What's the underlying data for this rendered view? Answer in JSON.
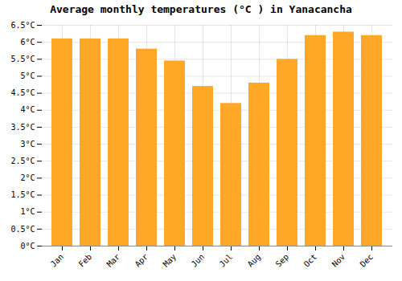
{
  "chart_data": {
    "type": "bar",
    "title": "Average monthly temperatures (°C ) in Yanacancha",
    "categories": [
      "Jan",
      "Feb",
      "Mar",
      "Apr",
      "May",
      "Jun",
      "Jul",
      "Aug",
      "Sep",
      "Oct",
      "Nov",
      "Dec"
    ],
    "values": [
      6.1,
      6.1,
      6.1,
      5.8,
      5.45,
      4.7,
      4.2,
      4.8,
      5.5,
      6.2,
      6.3,
      6.2
    ],
    "color": "#FFA726",
    "ylim": [
      0,
      6.5
    ],
    "yticks": [
      {
        "value": 0,
        "label": "0°C"
      },
      {
        "value": 0.5,
        "label": "0.5°C"
      },
      {
        "value": 1,
        "label": "1°C"
      },
      {
        "value": 1.5,
        "label": "1.5°C"
      },
      {
        "value": 2,
        "label": "2°C"
      },
      {
        "value": 2.5,
        "label": "2.5°C"
      },
      {
        "value": 3,
        "label": "3°C"
      },
      {
        "value": 3.5,
        "label": "3.5°C"
      },
      {
        "value": 4,
        "label": "4°C"
      },
      {
        "value": 4.5,
        "label": "4.5°C"
      },
      {
        "value": 5,
        "label": "5°C"
      },
      {
        "value": 5.5,
        "label": "5.5°C"
      },
      {
        "value": 6,
        "label": "6°C"
      },
      {
        "value": 6.5,
        "label": "6.5°C"
      }
    ],
    "grid": true
  }
}
